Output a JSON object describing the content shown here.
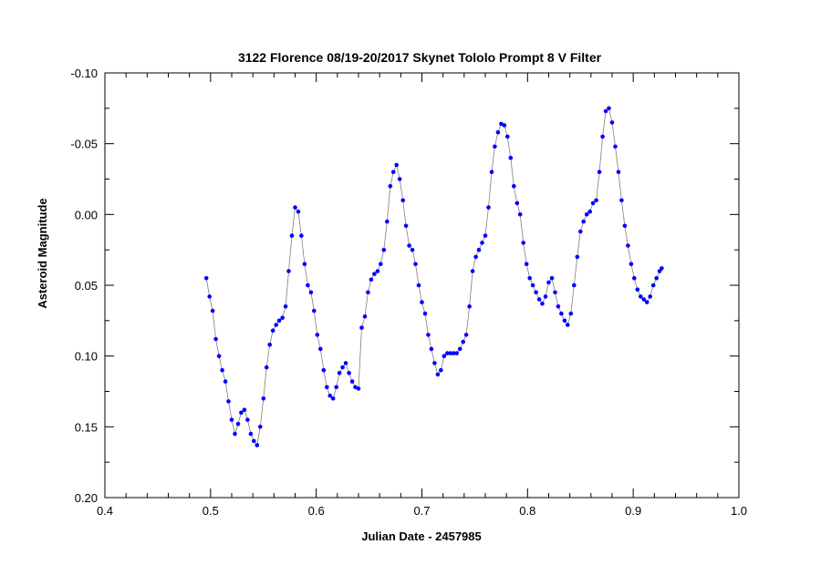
{
  "chart_data": {
    "type": "scatter",
    "title": "3122 Florence   08/19-20/2017  Skynet Tololo  Prompt 8  V Filter",
    "xlabel": "Julian Date - 2457985",
    "ylabel": "Asteroid Magnitude",
    "xlim": [
      0.4,
      1.0
    ],
    "ylim": [
      0.2,
      -0.1
    ],
    "y_inverted": true,
    "x_major_ticks": [
      0.4,
      0.5,
      0.6,
      0.7,
      0.8,
      0.9,
      1.0
    ],
    "x_tick_labels": [
      "0.4",
      "0.5",
      "0.6",
      "0.7",
      "0.8",
      "0.9",
      "1.0"
    ],
    "y_major_ticks": [
      -0.1,
      -0.05,
      0.0,
      0.05,
      0.1,
      0.15,
      0.2
    ],
    "y_tick_labels": [
      "-0.10",
      "-0.05",
      "0.00",
      "0.05",
      "0.10",
      "0.15",
      "0.20"
    ],
    "grid": false,
    "connected": true,
    "colors": {
      "points": "#0000ff",
      "line": "#808080"
    },
    "series": [
      {
        "x": [
          0.496,
          0.499,
          0.502,
          0.505,
          0.508,
          0.511,
          0.514,
          0.517,
          0.52,
          0.523,
          0.526,
          0.529,
          0.532,
          0.535,
          0.538,
          0.541,
          0.544,
          0.547,
          0.55,
          0.553,
          0.556,
          0.559,
          0.562,
          0.565,
          0.568,
          0.571,
          0.574,
          0.577,
          0.58,
          0.583,
          0.586,
          0.589,
          0.592,
          0.595,
          0.598,
          0.601,
          0.604,
          0.607,
          0.61,
          0.613,
          0.616,
          0.619,
          0.622,
          0.625,
          0.628,
          0.631,
          0.634,
          0.637,
          0.64,
          0.643,
          0.646,
          0.649,
          0.652,
          0.655,
          0.658,
          0.661,
          0.664,
          0.667,
          0.67,
          0.673,
          0.676,
          0.679,
          0.682,
          0.685,
          0.688,
          0.691,
          0.694,
          0.697,
          0.7,
          0.703,
          0.706,
          0.709,
          0.712,
          0.715,
          0.718,
          0.721,
          0.724,
          0.727,
          0.73,
          0.733,
          0.736,
          0.739,
          0.742,
          0.745,
          0.748,
          0.751,
          0.754,
          0.757,
          0.76,
          0.763,
          0.766,
          0.769,
          0.772,
          0.775,
          0.778,
          0.781,
          0.784,
          0.787,
          0.79,
          0.793,
          0.796,
          0.799,
          0.802,
          0.805,
          0.808,
          0.811,
          0.814,
          0.817,
          0.82,
          0.823,
          0.826,
          0.829,
          0.832,
          0.835,
          0.838,
          0.841,
          0.844,
          0.847,
          0.85,
          0.853,
          0.856,
          0.859,
          0.862,
          0.865,
          0.868,
          0.871,
          0.874,
          0.877,
          0.88,
          0.883,
          0.886,
          0.889,
          0.892,
          0.895,
          0.898,
          0.901,
          0.904,
          0.907,
          0.91,
          0.913,
          0.916,
          0.919,
          0.922,
          0.925,
          0.927
        ],
        "y": [
          0.045,
          0.058,
          0.068,
          0.088,
          0.1,
          0.11,
          0.118,
          0.132,
          0.145,
          0.155,
          0.148,
          0.14,
          0.138,
          0.145,
          0.155,
          0.16,
          0.163,
          0.15,
          0.13,
          0.108,
          0.092,
          0.082,
          0.078,
          0.075,
          0.073,
          0.065,
          0.04,
          0.015,
          -0.005,
          -0.002,
          0.015,
          0.035,
          0.05,
          0.055,
          0.068,
          0.085,
          0.095,
          0.11,
          0.122,
          0.128,
          0.13,
          0.122,
          0.112,
          0.108,
          0.105,
          0.112,
          0.118,
          0.122,
          0.123,
          0.08,
          0.072,
          0.055,
          0.046,
          0.042,
          0.04,
          0.035,
          0.025,
          0.005,
          -0.02,
          -0.03,
          -0.035,
          -0.025,
          -0.01,
          0.008,
          0.022,
          0.025,
          0.035,
          0.05,
          0.062,
          0.07,
          0.085,
          0.095,
          0.105,
          0.113,
          0.11,
          0.1,
          0.098,
          0.098,
          0.098,
          0.098,
          0.095,
          0.09,
          0.085,
          0.065,
          0.04,
          0.03,
          0.025,
          0.02,
          0.015,
          -0.005,
          -0.03,
          -0.048,
          -0.058,
          -0.064,
          -0.063,
          -0.055,
          -0.04,
          -0.02,
          -0.008,
          0.0,
          0.02,
          0.035,
          0.045,
          0.05,
          0.055,
          0.06,
          0.063,
          0.058,
          0.048,
          0.045,
          0.055,
          0.065,
          0.07,
          0.075,
          0.078,
          0.07,
          0.05,
          0.03,
          0.012,
          0.005,
          0.0,
          -0.002,
          -0.008,
          -0.01,
          -0.03,
          -0.055,
          -0.073,
          -0.075,
          -0.065,
          -0.048,
          -0.03,
          -0.01,
          0.008,
          0.022,
          0.035,
          0.045,
          0.053,
          0.058,
          0.06,
          0.062,
          0.058,
          0.05,
          0.045,
          0.04,
          0.038
        ]
      }
    ]
  }
}
